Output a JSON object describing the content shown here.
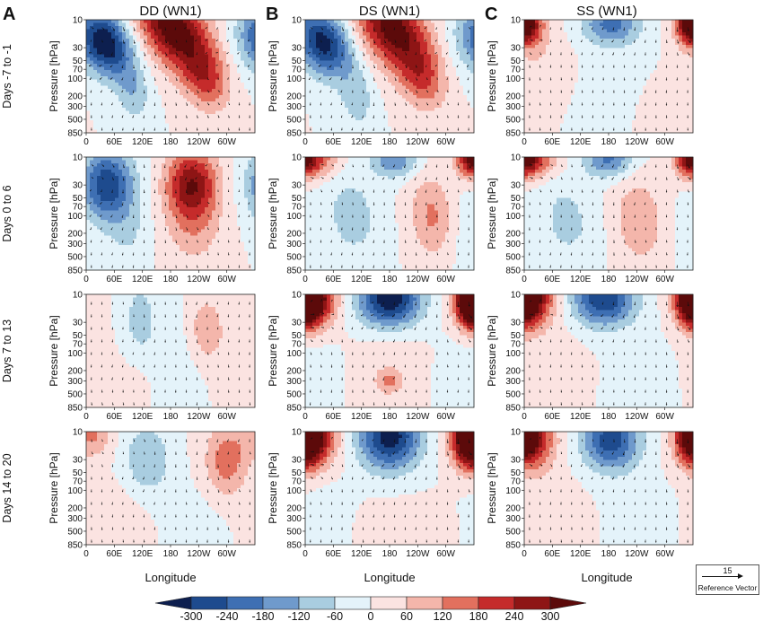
{
  "panel_letters": [
    "A",
    "B",
    "C"
  ],
  "column_titles": [
    "DD (WN1)",
    "DS (WN1)",
    "SS (WN1)"
  ],
  "row_labels": [
    "Days -7 to -1",
    "Days 0 to 6",
    "Days 7 to 13",
    "Days 14 to 20"
  ],
  "y_axis_label": "Pressure [hPa]",
  "x_axis_label": "Longitude",
  "y_tick_labels": [
    "10",
    "30",
    "50",
    "70",
    "100",
    "200",
    "300",
    "500",
    "850"
  ],
  "x_tick_labels": [
    "0",
    "60E",
    "120E",
    "180",
    "120W",
    "60W"
  ],
  "reference_vector": {
    "value": "15",
    "label": "Reference Vector"
  },
  "colorbar": {
    "labels": [
      "-300",
      "-240",
      "-180",
      "-120",
      "-60",
      "0",
      "60",
      "120",
      "180",
      "240",
      "300"
    ],
    "colors": [
      "#0d1f4f",
      "#1e4b8e",
      "#3e6fb3",
      "#6f9acc",
      "#a9cde0",
      "#e4f3fa",
      "#fbe3e1",
      "#f4b6ab",
      "#e2705e",
      "#c52b2b",
      "#8e1515",
      "#5c0a0a"
    ]
  },
  "chart_data": {
    "type": "heatmap",
    "description_of_fields": "Zonal wavenumber-1 geopotential height anomaly composites (shaded) with wind vectors, longitude vs pressure",
    "x": {
      "label": "Longitude",
      "ticks": [
        "0",
        "60E",
        "120E",
        "180",
        "120W",
        "60W"
      ],
      "range_deg": [
        0,
        360
      ]
    },
    "y": {
      "label": "Pressure [hPa]",
      "ticks": [
        10,
        30,
        50,
        70,
        100,
        200,
        300,
        500,
        850
      ],
      "scale": "log",
      "reversed": true
    },
    "color_levels": [
      -300,
      -240,
      -180,
      -120,
      -60,
      0,
      60,
      120,
      180,
      240,
      300
    ],
    "panels": [
      {
        "row": "Days -7 to -1",
        "column": "DD (WN1)",
        "blobs": [
          {
            "lon": 40,
            "p": 25,
            "value": -360,
            "rlon": 55,
            "rlogp": 0.55,
            "tilt": 0.6
          },
          {
            "lon": 100,
            "p": 180,
            "value": -100,
            "rlon": 35,
            "rlogp": 0.5,
            "tilt": 0.3
          },
          {
            "lon": 185,
            "p": 14,
            "value": 360,
            "rlon": 70,
            "rlogp": 0.7,
            "tilt": 0.9
          },
          {
            "lon": 255,
            "p": 100,
            "value": 180,
            "rlon": 50,
            "rlogp": 0.55,
            "tilt": 0.4
          },
          {
            "lon": 330,
            "p": 30,
            "value": -40,
            "rlon": 40,
            "rlogp": 0.6,
            "tilt": 0.0
          }
        ]
      },
      {
        "row": "Days -7 to -1",
        "column": "DS (WN1)",
        "blobs": [
          {
            "lon": 40,
            "p": 25,
            "value": -330,
            "rlon": 55,
            "rlogp": 0.55,
            "tilt": 0.6
          },
          {
            "lon": 110,
            "p": 220,
            "value": -100,
            "rlon": 35,
            "rlogp": 0.5,
            "tilt": 0.3
          },
          {
            "lon": 185,
            "p": 14,
            "value": 340,
            "rlon": 70,
            "rlogp": 0.7,
            "tilt": 0.9
          },
          {
            "lon": 250,
            "p": 100,
            "value": 160,
            "rlon": 50,
            "rlogp": 0.55,
            "tilt": 0.4
          },
          {
            "lon": 330,
            "p": 30,
            "value": -40,
            "rlon": 40,
            "rlogp": 0.6,
            "tilt": 0.0
          }
        ]
      },
      {
        "row": "Days -7 to -1",
        "column": "SS (WN1)",
        "blobs": [
          {
            "lon": 10,
            "p": 12,
            "value": 230,
            "rlon": 35,
            "rlogp": 0.35,
            "tilt": 0.0
          },
          {
            "lon": 185,
            "p": 12,
            "value": -200,
            "rlon": 60,
            "rlogp": 0.35,
            "tilt": 0.0
          },
          {
            "lon": 350,
            "p": 12,
            "value": 230,
            "rlon": 30,
            "rlogp": 0.35,
            "tilt": 0.0
          },
          {
            "lon": 40,
            "p": 60,
            "value": 50,
            "rlon": 60,
            "rlogp": 0.6,
            "tilt": 0.0
          },
          {
            "lon": 290,
            "p": 400,
            "value": 45,
            "rlon": 70,
            "rlogp": 0.6,
            "tilt": 0.0
          },
          {
            "lon": 200,
            "p": 200,
            "value": -35,
            "rlon": 80,
            "rlogp": 0.8,
            "tilt": 0.0
          }
        ]
      },
      {
        "row": "Days 0 to 6",
        "column": "DD (WN1)",
        "blobs": [
          {
            "lon": 45,
            "p": 30,
            "value": -290,
            "rlon": 55,
            "rlogp": 0.6,
            "tilt": 0.0
          },
          {
            "lon": 90,
            "p": 200,
            "value": -60,
            "rlon": 45,
            "rlogp": 0.6,
            "tilt": 0.0
          },
          {
            "lon": 225,
            "p": 30,
            "value": 300,
            "rlon": 55,
            "rlogp": 0.6,
            "tilt": 0.0
          },
          {
            "lon": 230,
            "p": 200,
            "value": 80,
            "rlon": 60,
            "rlogp": 0.6,
            "tilt": 0.0
          }
        ]
      },
      {
        "row": "Days 0 to 6",
        "column": "DS (WN1)",
        "blobs": [
          {
            "lon": 20,
            "p": 11,
            "value": 180,
            "rlon": 50,
            "rlogp": 0.3,
            "tilt": 0.0
          },
          {
            "lon": 190,
            "p": 11,
            "value": -170,
            "rlon": 50,
            "rlogp": 0.3,
            "tilt": 0.0
          },
          {
            "lon": 355,
            "p": 11,
            "value": 200,
            "rlon": 30,
            "rlogp": 0.3,
            "tilt": 0.0
          },
          {
            "lon": 100,
            "p": 100,
            "value": -90,
            "rlon": 60,
            "rlogp": 0.75,
            "tilt": 0.3
          },
          {
            "lon": 270,
            "p": 100,
            "value": 130,
            "rlon": 45,
            "rlogp": 0.7,
            "tilt": 0.2
          },
          {
            "lon": 340,
            "p": 200,
            "value": -30,
            "rlon": 35,
            "rlogp": 0.8,
            "tilt": 0.0
          }
        ]
      },
      {
        "row": "Days 0 to 6",
        "column": "SS (WN1)",
        "blobs": [
          {
            "lon": 20,
            "p": 11,
            "value": 200,
            "rlon": 50,
            "rlogp": 0.3,
            "tilt": 0.0
          },
          {
            "lon": 180,
            "p": 11,
            "value": -190,
            "rlon": 50,
            "rlogp": 0.3,
            "tilt": 0.0
          },
          {
            "lon": 355,
            "p": 11,
            "value": 220,
            "rlon": 30,
            "rlogp": 0.3,
            "tilt": 0.0
          },
          {
            "lon": 90,
            "p": 120,
            "value": -80,
            "rlon": 60,
            "rlogp": 0.75,
            "tilt": 0.3
          },
          {
            "lon": 245,
            "p": 120,
            "value": 120,
            "rlon": 50,
            "rlogp": 0.7,
            "tilt": 0.2
          },
          {
            "lon": 350,
            "p": 200,
            "value": -40,
            "rlon": 25,
            "rlogp": 0.6,
            "tilt": 0.0
          }
        ]
      },
      {
        "row": "Days 7 to 13",
        "column": "DD (WN1)",
        "blobs": [
          {
            "lon": 115,
            "p": 25,
            "value": -90,
            "rlon": 35,
            "rlogp": 0.6,
            "tilt": 0.0
          },
          {
            "lon": 255,
            "p": 40,
            "value": 110,
            "rlon": 35,
            "rlogp": 0.55,
            "tilt": 0.0
          },
          {
            "lon": 330,
            "p": 120,
            "value": 40,
            "rlon": 70,
            "rlogp": 0.9,
            "tilt": 0.0
          },
          {
            "lon": 60,
            "p": 400,
            "value": 50,
            "rlon": 70,
            "rlogp": 0.4,
            "tilt": 0.0
          },
          {
            "lon": 200,
            "p": 150,
            "value": -30,
            "rlon": 80,
            "rlogp": 0.9,
            "tilt": 0.0
          }
        ]
      },
      {
        "row": "Days 7 to 13",
        "column": "DS (WN1)",
        "blobs": [
          {
            "lon": 15,
            "p": 12,
            "value": 380,
            "rlon": 48,
            "rlogp": 0.45,
            "tilt": 0.0
          },
          {
            "lon": 180,
            "p": 12,
            "value": -360,
            "rlon": 65,
            "rlogp": 0.45,
            "tilt": 0.0
          },
          {
            "lon": 355,
            "p": 12,
            "value": 350,
            "rlon": 30,
            "rlogp": 0.45,
            "tilt": 0.0
          },
          {
            "lon": 180,
            "p": 300,
            "value": 100,
            "rlon": 25,
            "rlogp": 0.18,
            "tilt": 0.0
          },
          {
            "lon": 175,
            "p": 250,
            "value": 45,
            "rlon": 75,
            "rlogp": 0.7,
            "tilt": 0.0
          },
          {
            "lon": 30,
            "p": 300,
            "value": -40,
            "rlon": 50,
            "rlogp": 0.6,
            "tilt": 0.0
          },
          {
            "lon": 320,
            "p": 300,
            "value": -40,
            "rlon": 40,
            "rlogp": 0.6,
            "tilt": 0.0
          }
        ]
      },
      {
        "row": "Days 7 to 13",
        "column": "SS (WN1)",
        "blobs": [
          {
            "lon": 15,
            "p": 12,
            "value": 310,
            "rlon": 48,
            "rlogp": 0.45,
            "tilt": 0.0
          },
          {
            "lon": 170,
            "p": 12,
            "value": -300,
            "rlon": 65,
            "rlogp": 0.45,
            "tilt": 0.0
          },
          {
            "lon": 355,
            "p": 12,
            "value": 300,
            "rlon": 30,
            "rlogp": 0.45,
            "tilt": 0.0
          },
          {
            "lon": 60,
            "p": 200,
            "value": 40,
            "rlon": 70,
            "rlogp": 0.7,
            "tilt": 0.0
          },
          {
            "lon": 250,
            "p": 300,
            "value": -30,
            "rlon": 70,
            "rlogp": 0.7,
            "tilt": 0.0
          }
        ]
      },
      {
        "row": "Days 14 to 20",
        "column": "DD (WN1)",
        "blobs": [
          {
            "lon": 15,
            "p": 12,
            "value": 120,
            "rlon": 40,
            "rlogp": 0.35,
            "tilt": 0.0
          },
          {
            "lon": 130,
            "p": 30,
            "value": -120,
            "rlon": 50,
            "rlogp": 0.6,
            "tilt": 0.0
          },
          {
            "lon": 300,
            "p": 30,
            "value": 160,
            "rlon": 45,
            "rlogp": 0.6,
            "tilt": 0.0
          },
          {
            "lon": 60,
            "p": 300,
            "value": 40,
            "rlon": 70,
            "rlogp": 0.7,
            "tilt": 0.0
          },
          {
            "lon": 230,
            "p": 400,
            "value": -30,
            "rlon": 60,
            "rlogp": 0.6,
            "tilt": 0.0
          }
        ]
      },
      {
        "row": "Days 14 to 20",
        "column": "DS (WN1)",
        "blobs": [
          {
            "lon": 10,
            "p": 12,
            "value": 330,
            "rlon": 55,
            "rlogp": 0.5,
            "tilt": 0.0
          },
          {
            "lon": 180,
            "p": 12,
            "value": -340,
            "rlon": 65,
            "rlogp": 0.55,
            "tilt": 0.0
          },
          {
            "lon": 355,
            "p": 12,
            "value": 320,
            "rlon": 35,
            "rlogp": 0.5,
            "tilt": 0.0
          },
          {
            "lon": 210,
            "p": 500,
            "value": 45,
            "rlon": 90,
            "rlogp": 0.5,
            "tilt": 0.0
          },
          {
            "lon": 40,
            "p": 300,
            "value": -30,
            "rlon": 60,
            "rlogp": 0.7,
            "tilt": 0.0
          }
        ]
      },
      {
        "row": "Days 14 to 20",
        "column": "SS (WN1)",
        "blobs": [
          {
            "lon": 15,
            "p": 14,
            "value": 260,
            "rlon": 50,
            "rlogp": 0.5,
            "tilt": 0.0
          },
          {
            "lon": 185,
            "p": 14,
            "value": -280,
            "rlon": 60,
            "rlogp": 0.5,
            "tilt": 0.0
          },
          {
            "lon": 355,
            "p": 12,
            "value": 240,
            "rlon": 30,
            "rlogp": 0.4,
            "tilt": 0.0
          },
          {
            "lon": 60,
            "p": 300,
            "value": 40,
            "rlon": 70,
            "rlogp": 0.7,
            "tilt": 0.0
          },
          {
            "lon": 250,
            "p": 300,
            "value": -30,
            "rlon": 70,
            "rlogp": 0.7,
            "tilt": 0.0
          }
        ]
      }
    ]
  }
}
